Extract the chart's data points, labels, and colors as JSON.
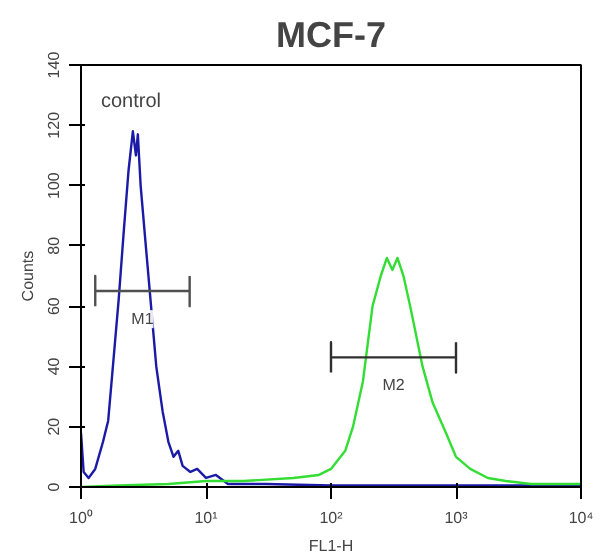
{
  "chart_data": {
    "type": "line",
    "title": "MCF-7",
    "xlabel": "FL1-H",
    "ylabel": "Counts",
    "log": "x",
    "grid": false,
    "xlim": [
      1,
      10000
    ],
    "ylim": [
      0,
      140
    ],
    "xticks": [
      {
        "value": 1,
        "label": "10⁰"
      },
      {
        "value": 10,
        "label": "10¹"
      },
      {
        "value": 100,
        "label": "10²"
      },
      {
        "value": 1000,
        "label": "10³"
      },
      {
        "value": 10000,
        "label": "10⁴"
      }
    ],
    "yticks": [
      0,
      20,
      40,
      60,
      80,
      100,
      120,
      140
    ],
    "annotations": [
      "control"
    ],
    "series": [
      {
        "color": "#1a1aa6",
        "x": [
          1,
          1.05,
          1.15,
          1.3,
          1.5,
          1.65,
          1.8,
          2.0,
          2.2,
          2.4,
          2.6,
          2.75,
          2.85,
          3.0,
          3.3,
          3.6,
          4.0,
          4.5,
          5.0,
          5.5,
          6.0,
          6.5,
          7.5,
          8.5,
          10,
          12,
          15,
          20,
          30,
          100,
          1000,
          10000
        ],
        "values": [
          18,
          5,
          3,
          6,
          15,
          22,
          40,
          62,
          85,
          105,
          118,
          110,
          117,
          100,
          80,
          62,
          40,
          25,
          15,
          10,
          12,
          7,
          5,
          6,
          3,
          4,
          1,
          1,
          1,
          0.5,
          0.5,
          0.5
        ]
      },
      {
        "color": "#33dd33",
        "x": [
          1,
          2,
          5,
          10,
          20,
          50,
          80,
          100,
          130,
          150,
          180,
          215,
          250,
          280,
          310,
          340,
          380,
          430,
          540,
          650,
          830,
          1000,
          1300,
          1800,
          2500,
          4000,
          10000
        ],
        "values": [
          0,
          0.5,
          1,
          2,
          2,
          3,
          4,
          6,
          12,
          20,
          35,
          60,
          70,
          76,
          72,
          76,
          70,
          60,
          40,
          28,
          18,
          10,
          6,
          3,
          2,
          1,
          1
        ]
      },
      {
        "name": "M1",
        "color": "#505050",
        "x": [
          1.3,
          1.3,
          1.3,
          7.4,
          7.4,
          7.4
        ],
        "values": [
          60,
          70,
          65,
          65,
          60,
          70
        ]
      },
      {
        "name": "M2",
        "color": "#303030",
        "x": [
          100,
          100,
          100,
          1000,
          1000,
          1000
        ],
        "values": [
          38,
          48,
          43,
          43,
          38,
          48
        ]
      }
    ]
  }
}
